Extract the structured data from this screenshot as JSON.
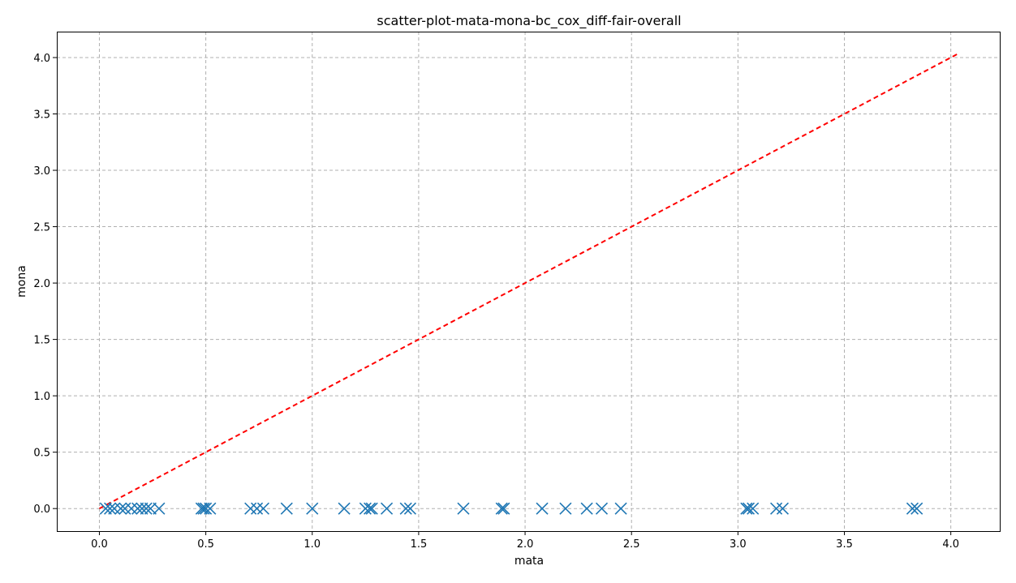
{
  "chart_data": {
    "type": "scatter",
    "title": "scatter-plot-mata-mona-bc_cox_diff-fair-overall",
    "xlabel": "mata",
    "ylabel": "mona",
    "xlim": [
      -0.2,
      4.23
    ],
    "ylim": [
      -0.2,
      4.23
    ],
    "x_ticks": [
      0.0,
      0.5,
      1.0,
      1.5,
      2.0,
      2.5,
      3.0,
      3.5,
      4.0
    ],
    "y_ticks": [
      0.0,
      0.5,
      1.0,
      1.5,
      2.0,
      2.5,
      3.0,
      3.5,
      4.0
    ],
    "x_tick_labels": [
      "0.0",
      "0.5",
      "1.0",
      "1.5",
      "2.0",
      "2.5",
      "3.0",
      "3.5",
      "4.0"
    ],
    "y_tick_labels": [
      "0.0",
      "0.5",
      "1.0",
      "1.5",
      "2.0",
      "2.5",
      "3.0",
      "3.5",
      "4.0"
    ],
    "grid": true,
    "marker": "x",
    "marker_color": "#1f77b4",
    "reference_line": {
      "from": [
        0.0,
        0.0
      ],
      "to": [
        4.03,
        4.03
      ],
      "color": "#ff0000",
      "style": "dashed"
    },
    "series": [
      {
        "x": [
          0.03,
          0.05,
          0.07,
          0.1,
          0.12,
          0.15,
          0.18,
          0.2,
          0.22,
          0.24,
          0.28,
          0.48,
          0.49,
          0.5,
          0.52,
          0.71,
          0.74,
          0.77,
          0.88,
          1.0,
          1.15,
          1.25,
          1.27,
          1.28,
          1.35,
          1.44,
          1.46,
          1.71,
          1.89,
          1.9,
          2.08,
          2.19,
          2.29,
          2.36,
          2.45,
          3.04,
          3.05,
          3.07,
          3.18,
          3.21,
          3.82,
          3.84
        ],
        "y": [
          0,
          0,
          0,
          0,
          0,
          0,
          0,
          0,
          0,
          0,
          0,
          0,
          0,
          0,
          0,
          0,
          0,
          0,
          0,
          0,
          0,
          0,
          0,
          0,
          0,
          0,
          0,
          0,
          0,
          0,
          0,
          0,
          0,
          0,
          0,
          0,
          0,
          0,
          0,
          0,
          0,
          0
        ]
      }
    ]
  }
}
